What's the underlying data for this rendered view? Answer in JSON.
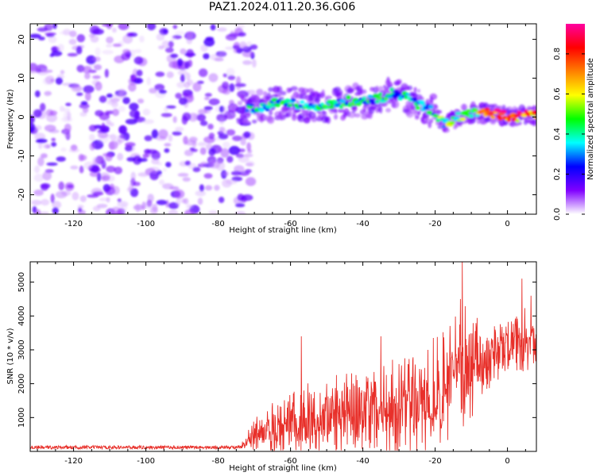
{
  "title": "PAZ1.2024.011.20.36.G06",
  "chart_data": [
    {
      "type": "heatmap",
      "xlabel": "Height of straight line (km)",
      "ylabel": "Frequency (Hz)",
      "xlim": [
        -132,
        8
      ],
      "ylim": [
        -25,
        24
      ],
      "x_ticks": [
        -120,
        -100,
        -80,
        -60,
        -40,
        -20,
        0
      ],
      "y_ticks": [
        -20,
        -10,
        0,
        10,
        20
      ],
      "colorbar": {
        "label": "Normalized spectral amplitude",
        "range": [
          0,
          0.95
        ],
        "ticks": [
          0.0,
          0.2,
          0.4,
          0.6,
          0.8
        ],
        "colormap": [
          "#ffffff",
          "#8000ff",
          "#0000ff",
          "#00ffff",
          "#00ff00",
          "#ffff00",
          "#ff8000",
          "#ff0000",
          "#ff00a0"
        ]
      },
      "ridge": [
        {
          "x": -72,
          "f": 2
        },
        {
          "x": -68,
          "f": 2.5
        },
        {
          "x": -64,
          "f": 3.5
        },
        {
          "x": -60,
          "f": 3.5
        },
        {
          "x": -56,
          "f": 3
        },
        {
          "x": -52,
          "f": 3
        },
        {
          "x": -48,
          "f": 3
        },
        {
          "x": -44,
          "f": 4
        },
        {
          "x": -40,
          "f": 4
        },
        {
          "x": -36,
          "f": 4.5
        },
        {
          "x": -32,
          "f": 6
        },
        {
          "x": -28,
          "f": 5
        },
        {
          "x": -24,
          "f": 3
        },
        {
          "x": -20,
          "f": 1
        },
        {
          "x": -17,
          "f": -2
        },
        {
          "x": -14,
          "f": 0
        },
        {
          "x": -10,
          "f": 1
        },
        {
          "x": -6,
          "f": 1
        },
        {
          "x": -2,
          "f": 0.5
        },
        {
          "x": 2,
          "f": 0
        },
        {
          "x": 6,
          "f": 0.5
        }
      ],
      "noise_region": {
        "x_range": [
          -132,
          -74
        ],
        "f_range": [
          -25,
          24
        ],
        "amplitude": 0.15
      }
    },
    {
      "type": "line",
      "xlabel": "Height of straight line (km)",
      "ylabel": "SNR (10 * v/v)",
      "xlim": [
        -132,
        8
      ],
      "ylim": [
        0,
        5600
      ],
      "x_ticks": [
        -120,
        -100,
        -80,
        -60,
        -40,
        -20,
        0
      ],
      "y_ticks": [
        1000,
        2000,
        3000,
        4000,
        5000
      ],
      "color": "#e8302a",
      "envelope": [
        {
          "x": -132,
          "base": 100,
          "amp": 100
        },
        {
          "x": -74,
          "base": 100,
          "amp": 100
        },
        {
          "x": -70,
          "base": 500,
          "amp": 700
        },
        {
          "x": -60,
          "base": 700,
          "amp": 1600
        },
        {
          "x": -50,
          "base": 900,
          "amp": 1800
        },
        {
          "x": -40,
          "base": 1100,
          "amp": 2000
        },
        {
          "x": -30,
          "base": 1100,
          "amp": 2300
        },
        {
          "x": -20,
          "base": 1300,
          "amp": 2600
        },
        {
          "x": -15,
          "base": 2000,
          "amp": 2600
        },
        {
          "x": -12,
          "base": 2300,
          "amp": 3300
        },
        {
          "x": -8,
          "base": 2500,
          "amp": 1800
        },
        {
          "x": -4,
          "base": 2800,
          "amp": 1500
        },
        {
          "x": 0,
          "base": 3000,
          "amp": 1300
        },
        {
          "x": 4,
          "base": 3300,
          "amp": 1900
        },
        {
          "x": 8,
          "base": 3000,
          "amp": 700
        }
      ],
      "peaks": [
        {
          "x": -12.5,
          "y": 5600
        },
        {
          "x": -57,
          "y": 3400
        },
        {
          "x": -35,
          "y": 3400
        },
        {
          "x": -20.5,
          "y": 3350
        },
        {
          "x": -13,
          "y": 4500
        },
        {
          "x": 4,
          "y": 5100
        },
        {
          "x": 6.5,
          "y": 4600
        },
        {
          "x": -22,
          "y": 3000
        }
      ]
    }
  ]
}
